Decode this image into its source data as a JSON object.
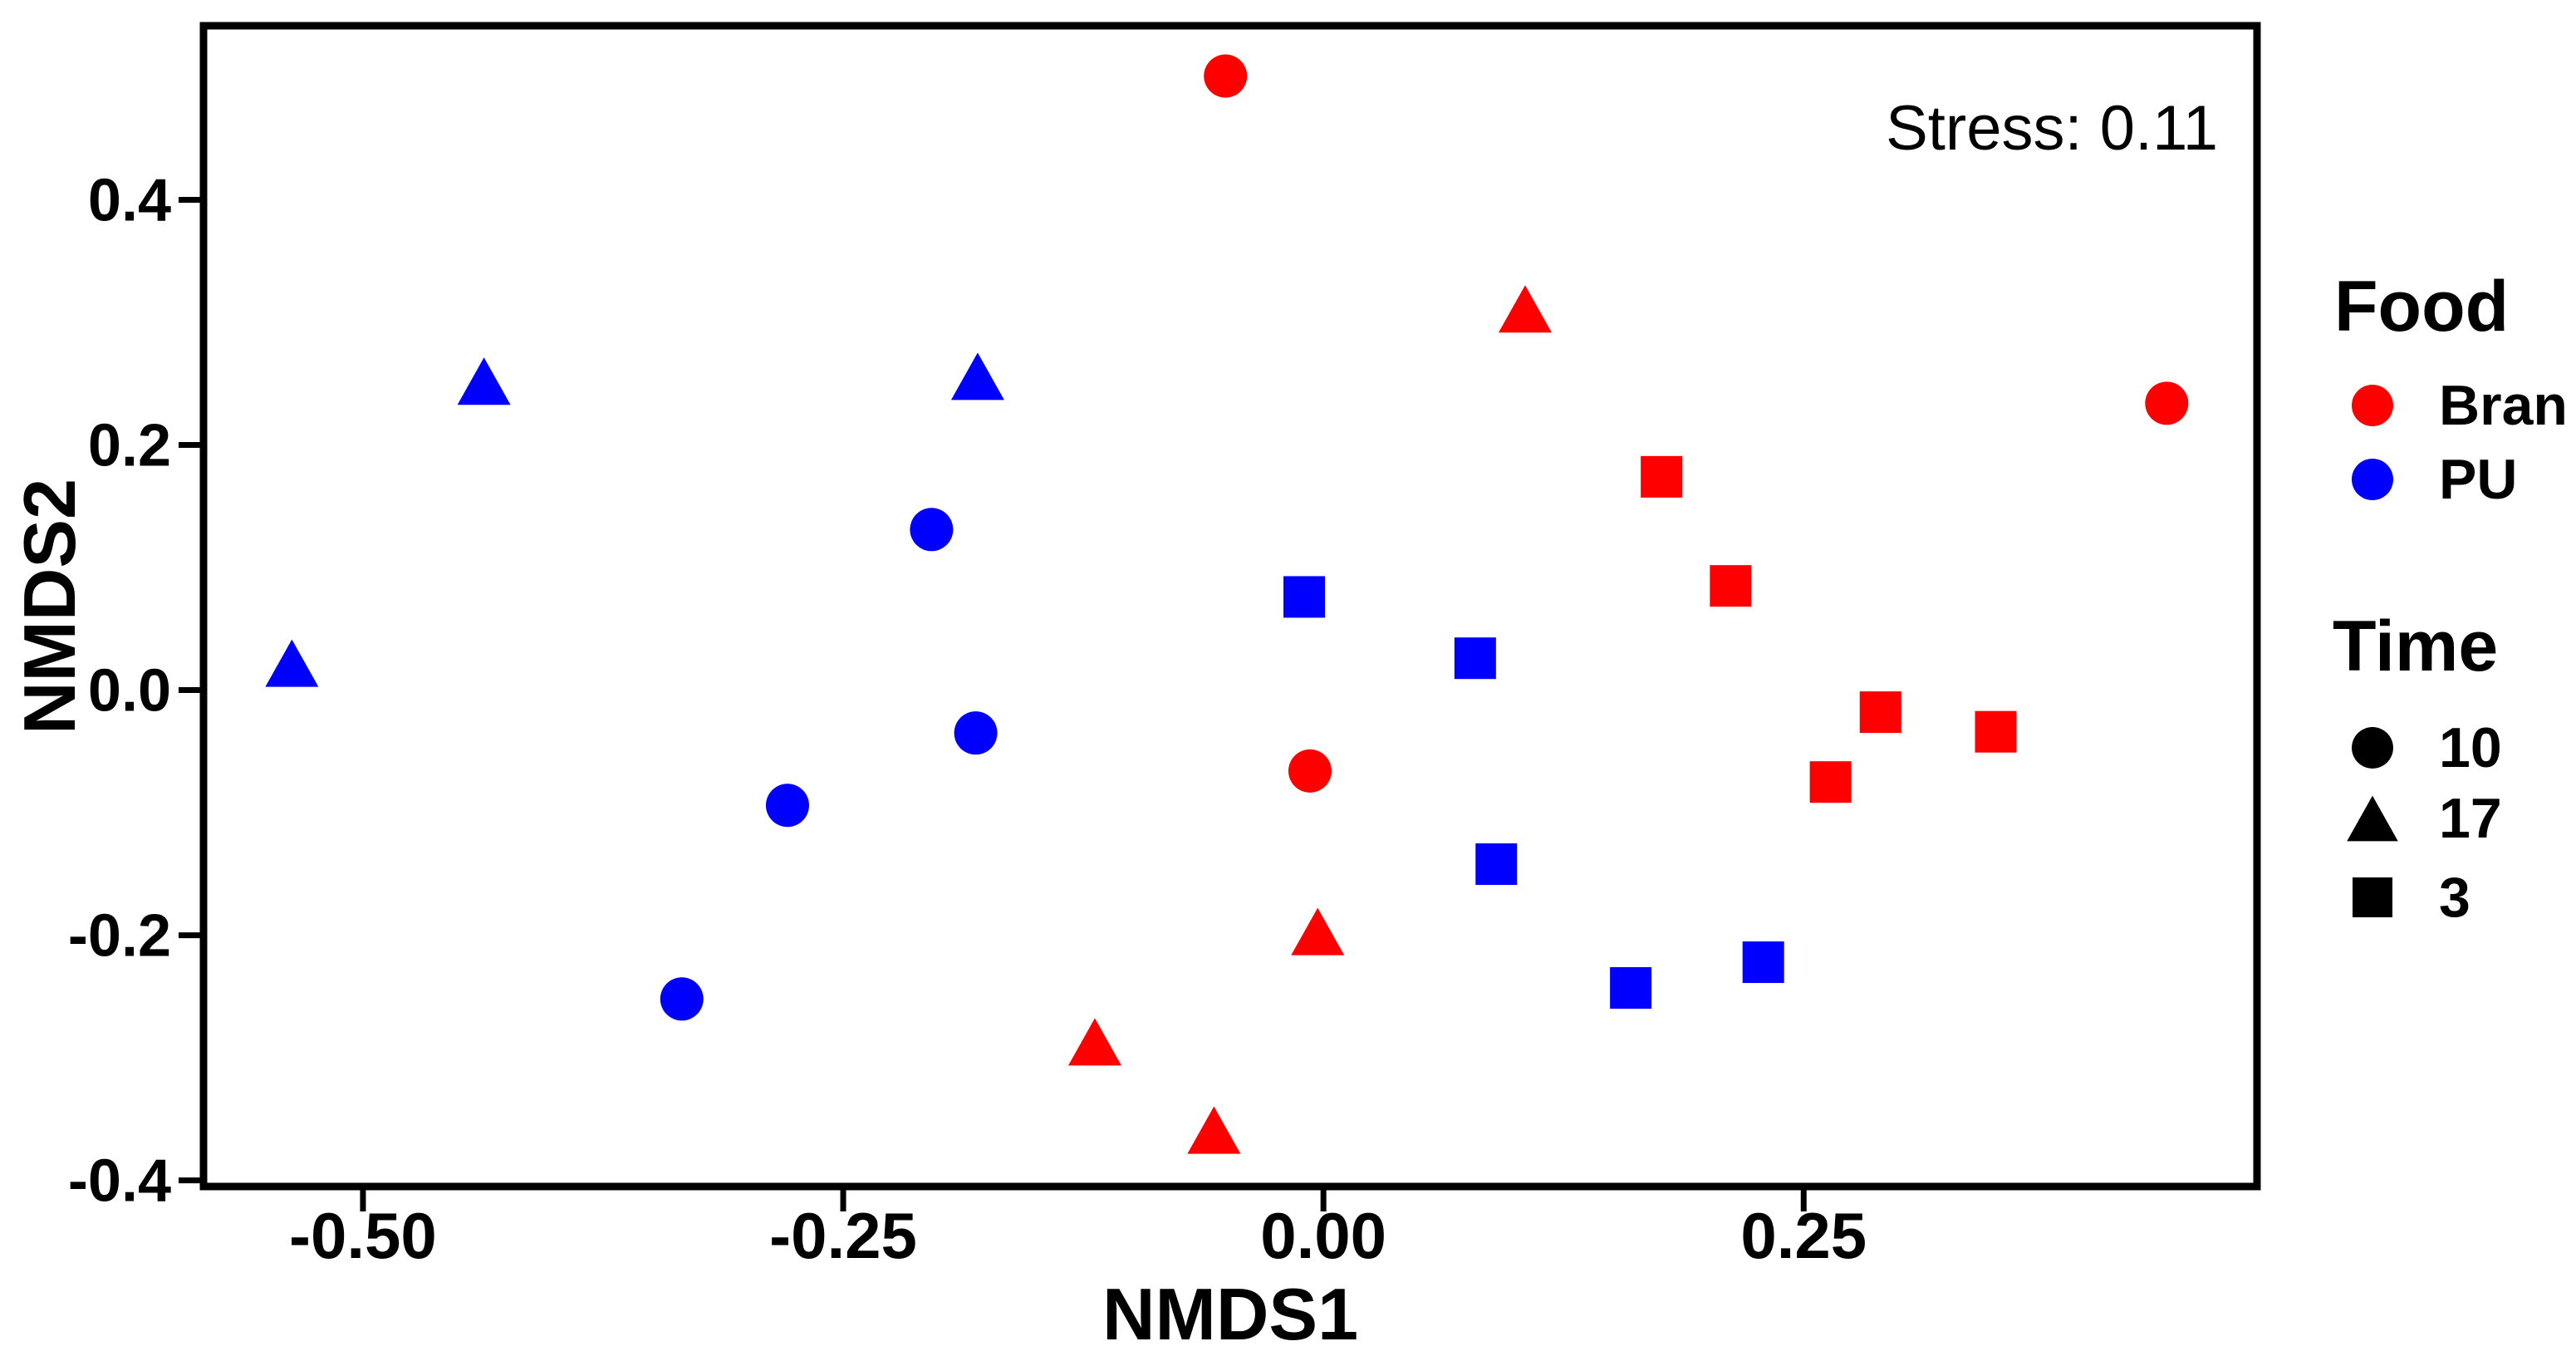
{
  "chart_data": {
    "type": "scatter",
    "title": "",
    "xlabel": "NMDS1",
    "ylabel": "NMDS2",
    "annotation": "Stress: 0.11",
    "xlim": [
      -0.583,
      0.486
    ],
    "ylim": [
      -0.405,
      0.542
    ],
    "grid": false,
    "legend_position": "right",
    "x_ticks": {
      "values": [
        -0.5,
        -0.25,
        0.0,
        0.25
      ],
      "labels": [
        "-0.50",
        "-0.25",
        "0.00",
        "0.25"
      ]
    },
    "y_ticks": {
      "values": [
        0.4,
        0.2,
        0.0,
        -0.2,
        -0.4
      ],
      "labels": [
        "0.4",
        "0.2",
        "0.0",
        "-0.2",
        "-0.4"
      ]
    },
    "series": [
      {
        "name": "Bran time 10",
        "food": "Bran",
        "time": "10",
        "color": "#FF0000",
        "marker": "circle",
        "points": [
          [
            -0.051,
            0.501
          ],
          [
            -0.007,
            -0.066
          ],
          [
            0.439,
            0.234
          ]
        ]
      },
      {
        "name": "Bran time 17",
        "food": "Bran",
        "time": "17",
        "color": "#FF0000",
        "marker": "triangle",
        "points": [
          [
            0.105,
            0.311
          ],
          [
            -0.003,
            -0.197
          ],
          [
            -0.119,
            -0.287
          ],
          [
            -0.057,
            -0.359
          ]
        ]
      },
      {
        "name": "Bran time 3",
        "food": "Bran",
        "time": "3",
        "color": "#FF0000",
        "marker": "square",
        "points": [
          [
            0.176,
            0.174
          ],
          [
            0.212,
            0.085
          ],
          [
            0.29,
            -0.018
          ],
          [
            0.35,
            -0.034
          ],
          [
            0.264,
            -0.075
          ]
        ]
      },
      {
        "name": "PU time 10",
        "food": "PU",
        "time": "10",
        "color": "#0000FF",
        "marker": "circle",
        "points": [
          [
            -0.204,
            0.131
          ],
          [
            -0.181,
            -0.035
          ],
          [
            -0.279,
            -0.094
          ],
          [
            -0.334,
            -0.252
          ]
        ]
      },
      {
        "name": "PU time 17",
        "food": "PU",
        "time": "17",
        "color": "#0000FF",
        "marker": "triangle",
        "points": [
          [
            -0.537,
            0.022
          ],
          [
            -0.437,
            0.252
          ],
          [
            -0.18,
            0.256
          ]
        ]
      },
      {
        "name": "PU time 3",
        "food": "PU",
        "time": "3",
        "color": "#0000FF",
        "marker": "square",
        "points": [
          [
            -0.01,
            0.076
          ],
          [
            0.079,
            0.026
          ],
          [
            0.09,
            -0.142
          ],
          [
            0.16,
            -0.243
          ],
          [
            0.229,
            -0.222
          ]
        ]
      }
    ],
    "legend": {
      "food": {
        "title": "Food",
        "items": [
          {
            "label": "Bran",
            "color": "#FF0000"
          },
          {
            "label": "PU",
            "color": "#0000FF"
          }
        ]
      },
      "time": {
        "title": "Time",
        "items": [
          {
            "label": "10",
            "marker": "circle"
          },
          {
            "label": "17",
            "marker": "triangle"
          },
          {
            "label": "3",
            "marker": "square"
          }
        ]
      }
    }
  },
  "colors": {
    "bran_red": "#FF0000",
    "pu_blue": "#0000FF",
    "axis_black": "#000000",
    "background": "#FFFFFF"
  }
}
